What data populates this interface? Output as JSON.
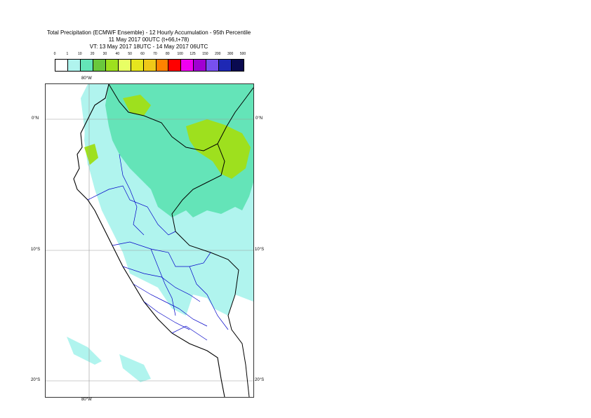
{
  "title": {
    "line1": "Total Precipitation (ECMWF Ensemble) - 12 Hourly Accumulation - 95th Percentile",
    "line2": "11 May 2017 00UTC (t+66,t+78)",
    "line3": "VT: 13 May 2017 18UTC - 14 May 2017 06UTC"
  },
  "legend": {
    "labels": [
      "0",
      "1",
      "10",
      "20",
      "30",
      "40",
      "50",
      "60",
      "70",
      "80",
      "100",
      "125",
      "150",
      "200",
      "300",
      "500"
    ],
    "colors": [
      "#ffffff",
      "#b0f4ee",
      "#64e4b8",
      "#6ac83c",
      "#9ee01e",
      "#e8ff64",
      "#e6e61e",
      "#f0c818",
      "#ff8200",
      "#ff0000",
      "#f000f0",
      "#a000d2",
      "#7850f0",
      "#1e28b4",
      "#0a0a50"
    ]
  },
  "map": {
    "lon_label_top": "80°W",
    "lon_label_bottom": "80°W",
    "lat_labels": [
      "0°N",
      "10°S",
      "20°S"
    ],
    "lat_labels_right": [
      "0°N",
      "10°S",
      "20°S"
    ],
    "colors": {
      "frame": "#333333",
      "graticule": "#999999",
      "land_light": "#b0f4ee",
      "land_medium": "#64e4b8",
      "heavy": "#9ee01e",
      "country_border": "#000000",
      "region_border": "#0000c8"
    }
  }
}
